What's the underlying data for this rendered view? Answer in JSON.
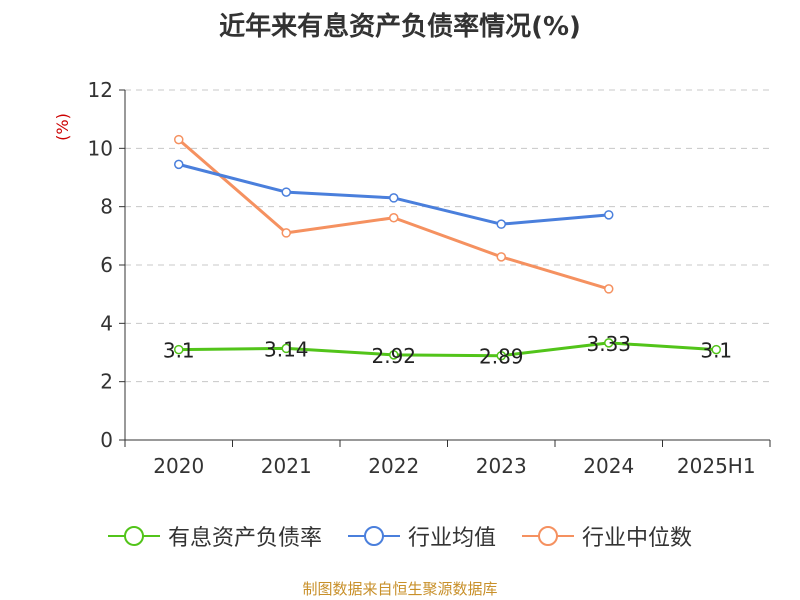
{
  "chart_data": {
    "type": "line",
    "title": "近年来有息资产负债率情况(%)",
    "ylabel": "(%)",
    "xlabel": "",
    "categories": [
      "2020",
      "2021",
      "2022",
      "2023",
      "2024",
      "2025H1"
    ],
    "ylim": [
      0,
      12
    ],
    "yticks": [
      0,
      2,
      4,
      6,
      8,
      10,
      12
    ],
    "grid": true,
    "legend_position": "bottom",
    "series": [
      {
        "name": "有息资产负债率",
        "color": "#52c41a",
        "values": [
          3.1,
          3.14,
          2.92,
          2.89,
          3.33,
          3.1
        ],
        "labels": [
          "3.1",
          "3.14",
          "2.92",
          "2.89",
          "3.33",
          "3.1"
        ]
      },
      {
        "name": "行业均值",
        "color": "#4a7fdc",
        "values": [
          9.45,
          8.5,
          8.3,
          7.4,
          7.72,
          null
        ]
      },
      {
        "name": "行业中位数",
        "color": "#f59160",
        "values": [
          10.3,
          7.1,
          7.62,
          6.28,
          5.18,
          null
        ]
      }
    ]
  },
  "source": "制图数据来自恒生聚源数据库"
}
